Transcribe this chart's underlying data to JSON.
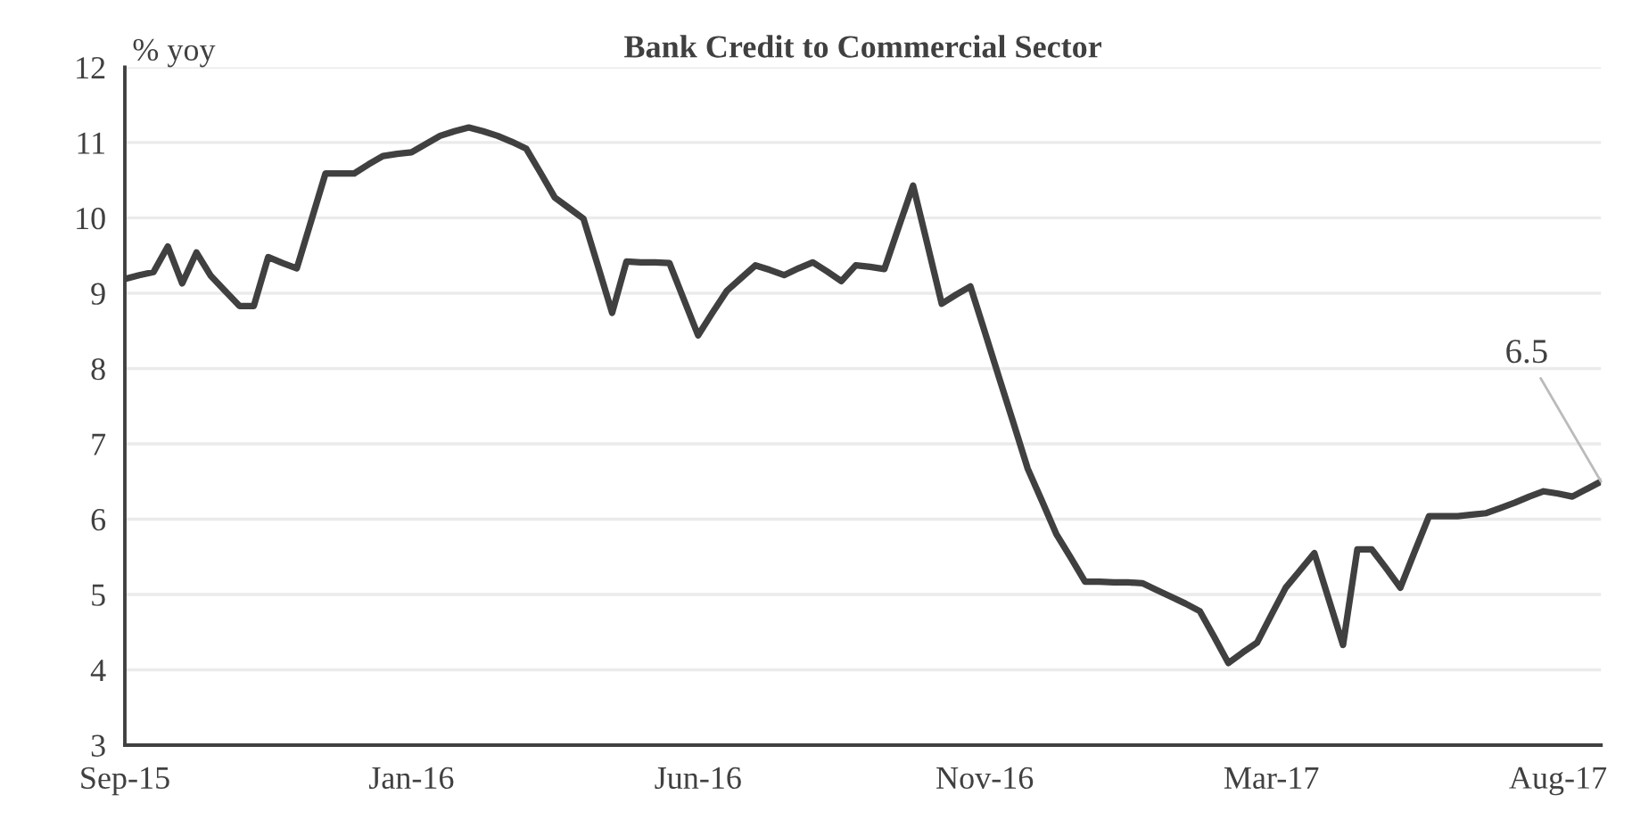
{
  "chart_data": {
    "type": "line",
    "title": "Bank Credit to Commercial Sector",
    "ylabel": "% yoy",
    "categories": [
      "Sep-15",
      null,
      null,
      null,
      null,
      null,
      null,
      null,
      null,
      null,
      null,
      null,
      null,
      null,
      null,
      null,
      null,
      null,
      null,
      null,
      "Jan-16",
      null,
      null,
      null,
      null,
      null,
      null,
      null,
      null,
      null,
      null,
      null,
      null,
      null,
      null,
      null,
      null,
      null,
      null,
      null,
      "Jun-16",
      null,
      null,
      null,
      null,
      null,
      null,
      null,
      null,
      null,
      null,
      null,
      null,
      null,
      null,
      null,
      null,
      null,
      null,
      null,
      "Nov-16",
      null,
      null,
      null,
      null,
      null,
      null,
      null,
      null,
      null,
      null,
      null,
      null,
      null,
      null,
      null,
      null,
      null,
      null,
      null,
      "Mar-17",
      null,
      null,
      null,
      null,
      null,
      null,
      null,
      null,
      null,
      null,
      null,
      null,
      null,
      null,
      null,
      null,
      null,
      null,
      null,
      "Aug-17",
      null,
      null,
      null
    ],
    "series": [
      {
        "color": "#404040",
        "values": [
          9.19,
          9.24,
          9.28,
          9.62,
          9.13,
          9.54,
          9.23,
          9.03,
          8.83,
          8.83,
          9.48,
          9.4,
          9.33,
          9.96,
          10.59,
          10.59,
          10.59,
          10.71,
          10.82,
          10.85,
          10.87,
          10.98,
          11.09,
          11.15,
          11.2,
          11.15,
          11.09,
          11.01,
          10.92,
          10.6,
          10.27,
          10.13,
          9.99,
          9.37,
          8.74,
          9.42,
          9.41,
          9.41,
          9.4,
          8.92,
          8.44,
          8.74,
          9.03,
          9.2,
          9.37,
          9.31,
          9.24,
          9.33,
          9.41,
          9.29,
          9.16,
          9.37,
          9.35,
          9.32,
          9.88,
          10.43,
          9.65,
          8.86,
          8.98,
          9.09,
          8.49,
          7.88,
          7.28,
          6.67,
          6.24,
          5.8,
          5.49,
          5.17,
          5.17,
          5.16,
          5.16,
          5.15,
          5.06,
          4.97,
          4.88,
          4.78,
          4.44,
          4.09,
          4.23,
          4.36,
          4.73,
          5.09,
          5.32,
          5.55,
          4.94,
          4.33,
          5.6,
          5.6,
          5.35,
          5.09,
          5.57,
          6.04,
          6.04,
          6.04,
          6.06,
          6.08,
          6.15,
          6.22,
          6.3,
          6.37,
          6.34,
          6.3,
          6.4,
          6.5
        ]
      }
    ],
    "ylim": [
      3,
      12
    ],
    "yticks": [
      3,
      4,
      5,
      6,
      7,
      8,
      9,
      10,
      11,
      12
    ],
    "value_labels": [
      null,
      null,
      null,
      null,
      null,
      null,
      null,
      null,
      null,
      null,
      null,
      null,
      null,
      null,
      null,
      null,
      null,
      null,
      null,
      null,
      null,
      null,
      null,
      null,
      null,
      null,
      null,
      null,
      null,
      null,
      null,
      null,
      null,
      null,
      null,
      null,
      null,
      null,
      null,
      null,
      null,
      null,
      null,
      null,
      null,
      null,
      null,
      null,
      null,
      null,
      null,
      null,
      null,
      null,
      null,
      null,
      null,
      null,
      null,
      null,
      null,
      null,
      null,
      null,
      null,
      null,
      null,
      null,
      null,
      null,
      null,
      null,
      null,
      null,
      null,
      null,
      null,
      null,
      null,
      null,
      null,
      null,
      null,
      null,
      null,
      null,
      null,
      null,
      null,
      null,
      null,
      null,
      null,
      null,
      null,
      null,
      null,
      null,
      null,
      null,
      null,
      null,
      null,
      "6.5"
    ],
    "grid": "y",
    "legend": false,
    "marker": "none",
    "line_style": "solid"
  }
}
